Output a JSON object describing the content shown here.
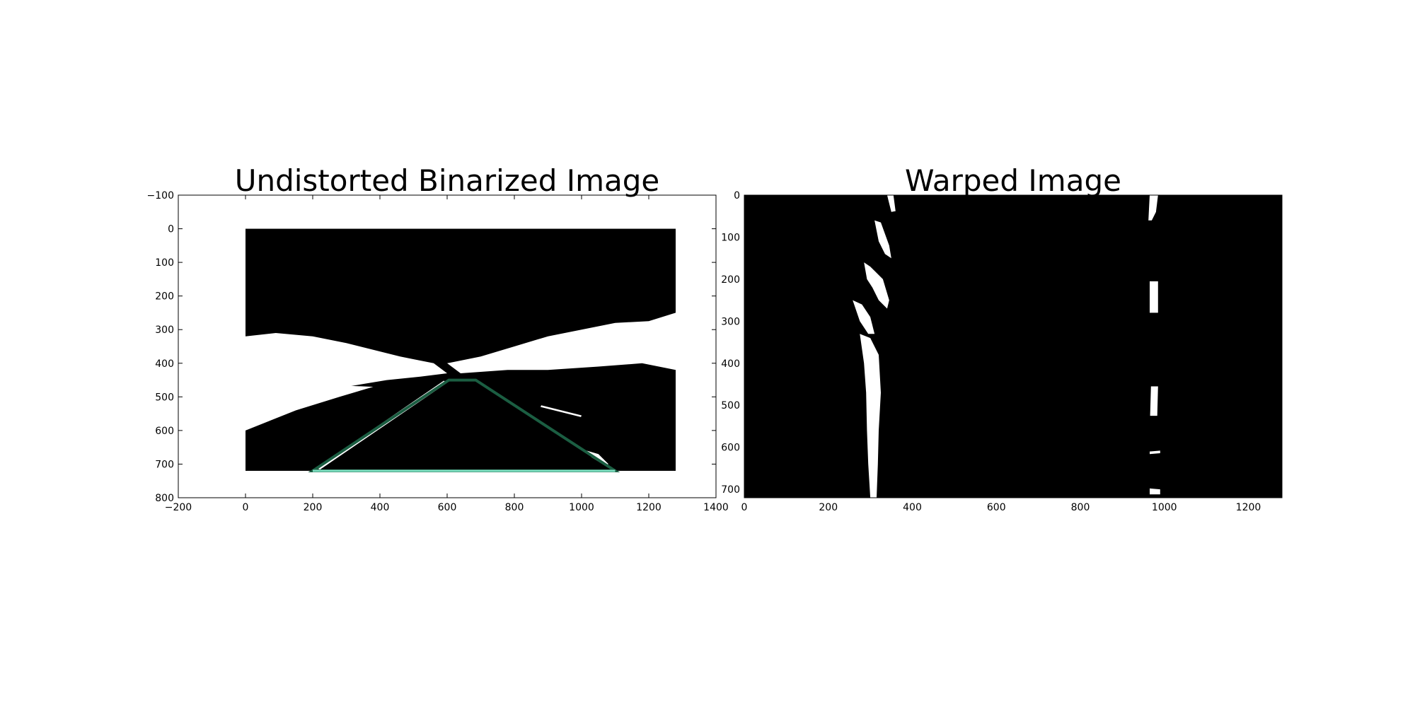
{
  "chart_data": [
    {
      "type": "image",
      "title": "Undistorted Binarized Image",
      "xlim": [
        -200,
        1400
      ],
      "ylim": [
        800,
        -100
      ],
      "xticks": [
        -200,
        0,
        200,
        400,
        600,
        800,
        1000,
        1200,
        1400
      ],
      "yticks": [
        -100,
        0,
        100,
        200,
        300,
        400,
        500,
        600,
        700,
        800
      ],
      "tick_labels_x": [
        "−200",
        "0",
        "200",
        "400",
        "600",
        "800",
        "1000",
        "1200",
        "1400"
      ],
      "tick_labels_y": [
        "−100",
        "0",
        "100",
        "200",
        "300",
        "400",
        "500",
        "600",
        "700",
        "800"
      ],
      "image_extent": {
        "x": [
          0,
          1280
        ],
        "y": [
          0,
          720
        ]
      },
      "image_colors": {
        "background": "#000000",
        "foreground": "#ffffff"
      },
      "overlay_polygon": {
        "color": "#1b5e42",
        "bottom_edge_color": "#7fe0c2",
        "points": [
          [
            200,
            720
          ],
          [
            605,
            450
          ],
          [
            685,
            450
          ],
          [
            1100,
            720
          ]
        ]
      },
      "white_regions": [
        {
          "label": "left-roadside-clutter",
          "points": [
            [
              0,
              320
            ],
            [
              90,
              310
            ],
            [
              200,
              320
            ],
            [
              300,
              340
            ],
            [
              380,
              360
            ],
            [
              460,
              380
            ],
            [
              560,
              400
            ],
            [
              600,
              430
            ],
            [
              520,
              440
            ],
            [
              420,
              450
            ],
            [
              300,
              470
            ],
            [
              150,
              490
            ],
            [
              0,
              520
            ]
          ]
        },
        {
          "label": "left-lower-clutter",
          "points": [
            [
              0,
              480
            ],
            [
              120,
              470
            ],
            [
              260,
              465
            ],
            [
              380,
              470
            ],
            [
              280,
              500
            ],
            [
              150,
              540
            ],
            [
              0,
              600
            ]
          ]
        },
        {
          "label": "right-roadside-clutter",
          "points": [
            [
              600,
              400
            ],
            [
              700,
              380
            ],
            [
              800,
              350
            ],
            [
              900,
              320
            ],
            [
              1000,
              300
            ],
            [
              1100,
              280
            ],
            [
              1200,
              275
            ],
            [
              1280,
              250
            ],
            [
              1280,
              420
            ],
            [
              1180,
              400
            ],
            [
              1050,
              410
            ],
            [
              900,
              420
            ],
            [
              780,
              420
            ],
            [
              640,
              430
            ]
          ]
        },
        {
          "label": "left-lane-stripe",
          "points": [
            [
              210,
              712
            ],
            [
              590,
              452
            ],
            [
              600,
              458
            ],
            [
              222,
              716
            ]
          ]
        },
        {
          "label": "right-lane-dash-far",
          "points": [
            [
              880,
              525
            ],
            [
              1000,
              555
            ],
            [
              998,
              560
            ],
            [
              878,
              530
            ]
          ]
        },
        {
          "label": "right-lane-dash-near",
          "points": [
            [
              1015,
              660
            ],
            [
              1050,
              670
            ],
            [
              1080,
              700
            ],
            [
              1070,
              705
            ],
            [
              1030,
              680
            ]
          ]
        }
      ]
    },
    {
      "type": "image",
      "title": "Warped Image",
      "xlim": [
        0,
        1280
      ],
      "ylim": [
        720,
        0
      ],
      "xticks": [
        0,
        200,
        400,
        600,
        800,
        1000,
        1200
      ],
      "yticks": [
        0,
        100,
        200,
        300,
        400,
        500,
        600,
        700
      ],
      "tick_labels_x": [
        "0",
        "200",
        "400",
        "600",
        "800",
        "1000",
        "1200"
      ],
      "tick_labels_y": [
        "0",
        "100",
        "200",
        "300",
        "400",
        "500",
        "600",
        "700"
      ],
      "image_extent": {
        "x": [
          0,
          1280
        ],
        "y": [
          0,
          720
        ]
      },
      "image_colors": {
        "background": "#000000",
        "foreground": "#ffffff"
      },
      "white_regions": [
        {
          "label": "left-lane-top",
          "points": [
            [
              340,
              0
            ],
            [
              355,
              0
            ],
            [
              360,
              38
            ],
            [
              350,
              40
            ]
          ]
        },
        {
          "label": "left-lane-upper",
          "points": [
            [
              310,
              60
            ],
            [
              325,
              65
            ],
            [
              345,
              120
            ],
            [
              350,
              150
            ],
            [
              335,
              140
            ],
            [
              320,
              110
            ]
          ]
        },
        {
          "label": "left-lane-mid",
          "points": [
            [
              285,
              160
            ],
            [
              300,
              170
            ],
            [
              330,
              200
            ],
            [
              345,
              250
            ],
            [
              340,
              270
            ],
            [
              320,
              250
            ],
            [
              305,
              220
            ],
            [
              292,
              200
            ]
          ]
        },
        {
          "label": "left-lane-middle",
          "points": [
            [
              258,
              250
            ],
            [
              280,
              260
            ],
            [
              300,
              290
            ],
            [
              310,
              330
            ],
            [
              295,
              330
            ],
            [
              275,
              300
            ]
          ]
        },
        {
          "label": "left-lane-lower",
          "points": [
            [
              275,
              330
            ],
            [
              300,
              340
            ],
            [
              320,
              380
            ],
            [
              325,
              470
            ],
            [
              320,
              560
            ],
            [
              318,
              640
            ],
            [
              315,
              720
            ],
            [
              300,
              720
            ],
            [
              295,
              640
            ],
            [
              292,
              560
            ],
            [
              290,
              470
            ],
            [
              285,
              400
            ]
          ]
        },
        {
          "label": "right-lane-top",
          "points": [
            [
              965,
              0
            ],
            [
              985,
              0
            ],
            [
              980,
              40
            ],
            [
              970,
              60
            ],
            [
              962,
              60
            ]
          ]
        },
        {
          "label": "right-lane-upper",
          "points": [
            [
              965,
              205
            ],
            [
              985,
              205
            ],
            [
              985,
              280
            ],
            [
              965,
              280
            ]
          ]
        },
        {
          "label": "right-lane-mid",
          "points": [
            [
              968,
              455
            ],
            [
              985,
              455
            ],
            [
              983,
              525
            ],
            [
              966,
              525
            ]
          ]
        },
        {
          "label": "right-lane-dash",
          "points": [
            [
              965,
              610
            ],
            [
              990,
              608
            ],
            [
              990,
              614
            ],
            [
              965,
              616
            ]
          ]
        },
        {
          "label": "right-lane-bottom",
          "points": [
            [
              965,
              698
            ],
            [
              990,
              700
            ],
            [
              990,
              712
            ],
            [
              965,
              712
            ]
          ]
        }
      ]
    }
  ]
}
